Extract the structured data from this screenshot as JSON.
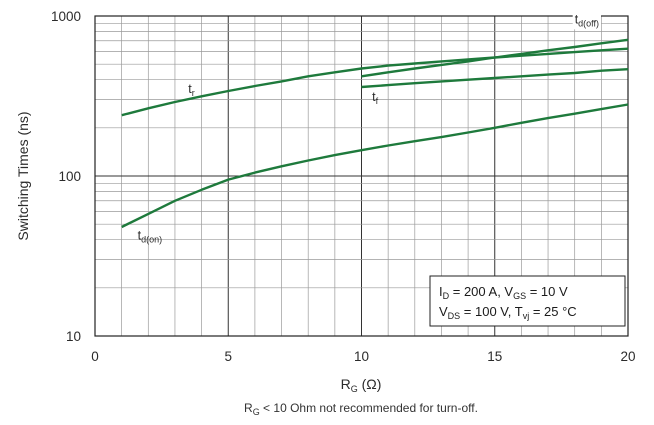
{
  "chart_data": {
    "type": "line",
    "xlabel_main": "R",
    "xlabel_sub": "G",
    "xlabel_unit": " (Ω)",
    "ylabel": "Switching Times (ns)",
    "xlim": [
      0,
      20
    ],
    "ylim": [
      10,
      1000
    ],
    "yscale": "log",
    "grid": true,
    "x_ticks": [
      "0",
      "5",
      "10",
      "15",
      "20"
    ],
    "y_ticks": [
      "10",
      "100",
      "1000"
    ],
    "series": [
      {
        "name": "t_r",
        "label_main": "t",
        "label_sub": "r",
        "color": "#1e7a3c",
        "x": [
          1,
          2,
          3,
          4,
          5,
          6,
          7,
          8,
          9,
          10,
          11,
          12,
          13,
          14,
          15,
          16,
          17,
          18,
          19,
          20
        ],
        "y": [
          240,
          265,
          290,
          315,
          340,
          365,
          390,
          420,
          445,
          470,
          490,
          505,
          520,
          535,
          550,
          565,
          580,
          595,
          610,
          625
        ]
      },
      {
        "name": "t_d(on)",
        "label_main": "t",
        "label_sub": "d(on)",
        "color": "#1e7a3c",
        "x": [
          1,
          2,
          3,
          4,
          5,
          6,
          7,
          8,
          9,
          10,
          11,
          12,
          13,
          14,
          15,
          16,
          17,
          18,
          19,
          20
        ],
        "y": [
          48,
          58,
          70,
          82,
          95,
          105,
          115,
          125,
          135,
          145,
          155,
          165,
          175,
          187,
          200,
          215,
          230,
          245,
          262,
          280
        ]
      },
      {
        "name": "t_d(off)",
        "label_main": "t",
        "label_sub": "d(off)",
        "color": "#1e7a3c",
        "x": [
          10,
          11,
          12,
          13,
          14,
          15,
          16,
          17,
          18,
          19,
          20
        ],
        "y": [
          420,
          445,
          470,
          495,
          520,
          550,
          580,
          610,
          640,
          675,
          710
        ]
      },
      {
        "name": "t_f",
        "label_main": "t",
        "label_sub": "f",
        "color": "#1e7a3c",
        "x": [
          10,
          11,
          12,
          13,
          14,
          15,
          16,
          17,
          18,
          19,
          20
        ],
        "y": [
          360,
          370,
          380,
          390,
          400,
          410,
          420,
          430,
          440,
          455,
          465
        ]
      }
    ],
    "conditions": {
      "line1": [
        {
          "t": "I",
          "s": false
        },
        {
          "t": "D",
          "s": true
        },
        {
          "t": " = 200 A,  V",
          "s": false
        },
        {
          "t": "GS",
          "s": true
        },
        {
          "t": " = 10 V",
          "s": false
        }
      ],
      "line2": [
        {
          "t": "V",
          "s": false
        },
        {
          "t": "DS",
          "s": true
        },
        {
          "t": " = 100 V, T",
          "s": false
        },
        {
          "t": "vj",
          "s": true
        },
        {
          "t": " = 25 °C",
          "s": false
        }
      ]
    },
    "note": "R_G < 10 Ohm not recommended for turn-off.",
    "note_parts": [
      {
        "t": "R",
        "s": false
      },
      {
        "t": "G",
        "s": true
      },
      {
        "t": " < 10 Ohm not recommended for turn-off.",
        "s": false
      }
    ]
  }
}
